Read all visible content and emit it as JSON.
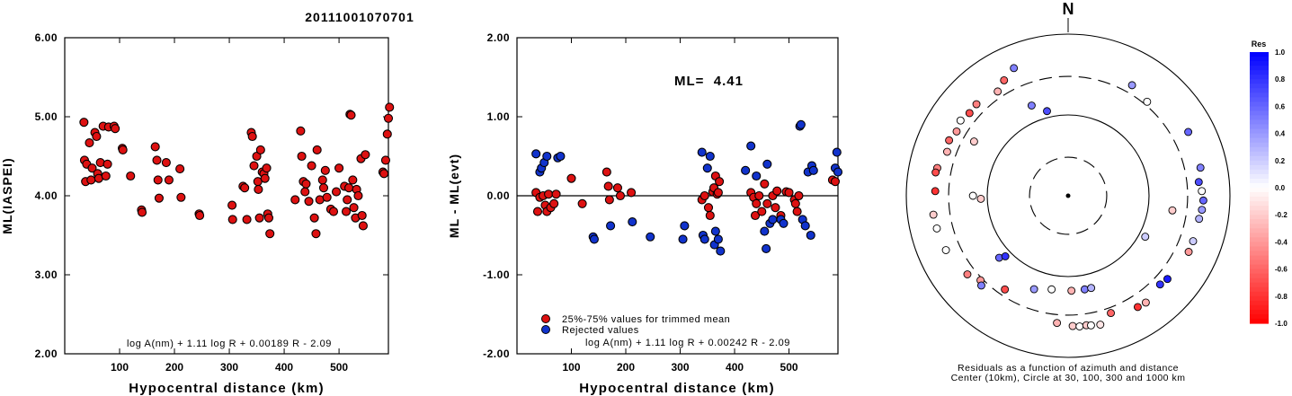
{
  "header": {
    "event_id": "20111001070701"
  },
  "chart_data": [
    {
      "type": "scatter",
      "xlabel": "Hypocentral distance (km)",
      "ylabel": "ML(IASPEI)",
      "xlim": [
        0,
        590
      ],
      "ylim": [
        2.0,
        6.0
      ],
      "x_ticks": [
        {
          "v": 100,
          "label": "100"
        },
        {
          "v": 200,
          "label": "200"
        },
        {
          "v": 300,
          "label": "300"
        },
        {
          "v": 400,
          "label": "400"
        },
        {
          "v": 500,
          "label": "500"
        }
      ],
      "y_ticks": [
        {
          "v": 2.0,
          "label": "2.00"
        },
        {
          "v": 3.0,
          "label": "3.00"
        },
        {
          "v": 4.0,
          "label": "4.00"
        },
        {
          "v": 5.0,
          "label": "5.00"
        },
        {
          "v": 6.0,
          "label": "6.00"
        }
      ],
      "formula": "log A(nm) + 1.11 log R + 0.00189 R - 2.09",
      "marker_color": "#dd1111",
      "points": [
        [
          35,
          4.93
        ],
        [
          36,
          4.45
        ],
        [
          38,
          4.18
        ],
        [
          40,
          4.4
        ],
        [
          45,
          4.67
        ],
        [
          48,
          4.2
        ],
        [
          50,
          4.35
        ],
        [
          55,
          4.8
        ],
        [
          58,
          4.75
        ],
        [
          60,
          4.28
        ],
        [
          62,
          4.22
        ],
        [
          65,
          4.42
        ],
        [
          70,
          4.88
        ],
        [
          75,
          4.25
        ],
        [
          78,
          4.4
        ],
        [
          80,
          4.87
        ],
        [
          90,
          4.88
        ],
        [
          92,
          4.85
        ],
        [
          105,
          4.6
        ],
        [
          106,
          4.58
        ],
        [
          120,
          4.25
        ],
        [
          140,
          3.82
        ],
        [
          141,
          3.79
        ],
        [
          165,
          4.62
        ],
        [
          168,
          4.45
        ],
        [
          170,
          4.2
        ],
        [
          172,
          3.97
        ],
        [
          185,
          4.42
        ],
        [
          190,
          4.2
        ],
        [
          210,
          4.34
        ],
        [
          212,
          3.98
        ],
        [
          245,
          3.77
        ],
        [
          246,
          3.75
        ],
        [
          305,
          3.88
        ],
        [
          306,
          3.7
        ],
        [
          325,
          4.12
        ],
        [
          328,
          4.1
        ],
        [
          332,
          3.7
        ],
        [
          340,
          4.8
        ],
        [
          342,
          4.75
        ],
        [
          345,
          4.38
        ],
        [
          350,
          4.5
        ],
        [
          352,
          4.18
        ],
        [
          353,
          4.08
        ],
        [
          355,
          3.72
        ],
        [
          357,
          4.58
        ],
        [
          360,
          4.3
        ],
        [
          363,
          4.28
        ],
        [
          365,
          4.22
        ],
        [
          368,
          4.35
        ],
        [
          370,
          3.77
        ],
        [
          372,
          3.72
        ],
        [
          374,
          3.52
        ],
        [
          420,
          3.95
        ],
        [
          430,
          4.82
        ],
        [
          432,
          4.5
        ],
        [
          435,
          4.18
        ],
        [
          438,
          4.05
        ],
        [
          440,
          4.15
        ],
        [
          445,
          3.93
        ],
        [
          450,
          4.38
        ],
        [
          455,
          3.72
        ],
        [
          458,
          3.52
        ],
        [
          460,
          4.58
        ],
        [
          465,
          3.95
        ],
        [
          470,
          4.2
        ],
        [
          472,
          4.1
        ],
        [
          475,
          4.32
        ],
        [
          478,
          3.98
        ],
        [
          485,
          3.83
        ],
        [
          490,
          3.8
        ],
        [
          495,
          4.05
        ],
        [
          500,
          4.35
        ],
        [
          510,
          4.12
        ],
        [
          513,
          3.8
        ],
        [
          515,
          3.95
        ],
        [
          518,
          4.1
        ],
        [
          520,
          5.03
        ],
        [
          522,
          5.02
        ],
        [
          525,
          4.2
        ],
        [
          527,
          3.85
        ],
        [
          530,
          3.72
        ],
        [
          532,
          4.08
        ],
        [
          535,
          4.0
        ],
        [
          540,
          4.47
        ],
        [
          542,
          3.75
        ],
        [
          544,
          3.62
        ],
        [
          548,
          4.52
        ],
        [
          580,
          4.3
        ],
        [
          582,
          4.28
        ],
        [
          585,
          4.45
        ],
        [
          588,
          4.78
        ],
        [
          590,
          4.98
        ],
        [
          592,
          5.12
        ]
      ]
    },
    {
      "type": "scatter",
      "xlabel": "Hypocentral distance (km)",
      "ylabel": "ML - ML(evt)",
      "xlim": [
        0,
        590
      ],
      "ylim": [
        -2.0,
        2.0
      ],
      "x_ticks": [
        {
          "v": 100,
          "label": "100"
        },
        {
          "v": 200,
          "label": "200"
        },
        {
          "v": 300,
          "label": "300"
        },
        {
          "v": 400,
          "label": "400"
        },
        {
          "v": 500,
          "label": "500"
        }
      ],
      "y_ticks": [
        {
          "v": -2.0,
          "label": "-2.00"
        },
        {
          "v": -1.0,
          "label": "-1.00"
        },
        {
          "v": 0.0,
          "label": "0.00"
        },
        {
          "v": 1.0,
          "label": "1.00"
        },
        {
          "v": 2.0,
          "label": "2.00"
        }
      ],
      "annotation": "ML=  4.41",
      "formula": "log A(nm) + 1.11 log R + 0.00242 R - 2.09",
      "legend": [
        {
          "label": "25%-75% values for trimmed mean",
          "color": "#dd1111"
        },
        {
          "label": "Rejected values",
          "color": "#1133cc"
        }
      ],
      "series": [
        {
          "name": "25%-75% values for trimmed mean",
          "color": "#dd1111",
          "points": [
            [
              35,
              0.04
            ],
            [
              38,
              -0.2
            ],
            [
              42,
              -0.02
            ],
            [
              48,
              0.0
            ],
            [
              52,
              -0.12
            ],
            [
              55,
              -0.2
            ],
            [
              58,
              0.02
            ],
            [
              62,
              -0.15
            ],
            [
              68,
              -0.1
            ],
            [
              72,
              0.02
            ],
            [
              100,
              0.22
            ],
            [
              120,
              -0.1
            ],
            [
              165,
              0.3
            ],
            [
              168,
              0.12
            ],
            [
              170,
              -0.05
            ],
            [
              185,
              0.1
            ],
            [
              190,
              0.0
            ],
            [
              210,
              0.04
            ],
            [
              340,
              -0.05
            ],
            [
              345,
              0.0
            ],
            [
              352,
              -0.15
            ],
            [
              355,
              -0.25
            ],
            [
              360,
              0.05
            ],
            [
              362,
              0.1
            ],
            [
              365,
              0.25
            ],
            [
              368,
              0.02
            ],
            [
              370,
              0.04
            ],
            [
              372,
              0.18
            ],
            [
              430,
              0.04
            ],
            [
              435,
              -0.02
            ],
            [
              438,
              -0.25
            ],
            [
              440,
              -0.1
            ],
            [
              445,
              0.0
            ],
            [
              450,
              -0.2
            ],
            [
              455,
              0.15
            ],
            [
              460,
              -0.1
            ],
            [
              470,
              0.0
            ],
            [
              475,
              -0.15
            ],
            [
              478,
              0.06
            ],
            [
              485,
              -0.25
            ],
            [
              495,
              0.05
            ],
            [
              500,
              0.04
            ],
            [
              510,
              -0.05
            ],
            [
              512,
              -0.1
            ],
            [
              515,
              -0.2
            ],
            [
              518,
              0.0
            ],
            [
              580,
              0.2
            ],
            [
              585,
              0.18
            ]
          ]
        },
        {
          "name": "Rejected values",
          "color": "#1133cc",
          "points": [
            [
              35,
              0.53
            ],
            [
              42,
              0.3
            ],
            [
              45,
              0.35
            ],
            [
              50,
              0.42
            ],
            [
              55,
              0.5
            ],
            [
              75,
              0.48
            ],
            [
              80,
              0.5
            ],
            [
              140,
              -0.52
            ],
            [
              142,
              -0.55
            ],
            [
              172,
              -0.38
            ],
            [
              212,
              -0.33
            ],
            [
              245,
              -0.52
            ],
            [
              305,
              -0.55
            ],
            [
              308,
              -0.38
            ],
            [
              340,
              0.55
            ],
            [
              342,
              -0.5
            ],
            [
              345,
              -0.55
            ],
            [
              350,
              0.35
            ],
            [
              355,
              0.5
            ],
            [
              363,
              -0.62
            ],
            [
              365,
              -0.45
            ],
            [
              370,
              -0.55
            ],
            [
              374,
              -0.7
            ],
            [
              420,
              0.32
            ],
            [
              430,
              0.63
            ],
            [
              440,
              0.25
            ],
            [
              455,
              -0.45
            ],
            [
              458,
              -0.67
            ],
            [
              460,
              0.4
            ],
            [
              465,
              -0.35
            ],
            [
              470,
              -0.3
            ],
            [
              485,
              -0.3
            ],
            [
              490,
              -0.35
            ],
            [
              520,
              0.88
            ],
            [
              522,
              0.9
            ],
            [
              525,
              -0.3
            ],
            [
              530,
              -0.38
            ],
            [
              535,
              0.3
            ],
            [
              540,
              -0.5
            ],
            [
              542,
              0.38
            ],
            [
              545,
              0.32
            ],
            [
              585,
              0.35
            ],
            [
              588,
              0.55
            ],
            [
              590,
              0.3
            ]
          ]
        }
      ]
    },
    {
      "type": "scatter",
      "subtype": "polar",
      "north_label": "N",
      "caption_lines": [
        "Residuals as a function of azimuth and distance",
        "Center (10km), Circle at 30, 100, 300 and 1000 km"
      ],
      "rings": [
        {
          "km": 30,
          "style": "dashed"
        },
        {
          "km": 100,
          "style": "solid"
        },
        {
          "km": 300,
          "style": "dashed"
        },
        {
          "km": 1000,
          "style": "solid"
        }
      ],
      "colorbar": {
        "title": "Res",
        "ticks": [
          "1.0",
          "0.8",
          "0.6",
          "0.4",
          "0.2",
          "0.0",
          "-0.2",
          "-0.4",
          "-0.6",
          "-0.8",
          "-1.0"
        ],
        "max_color": "#0000ff",
        "zero_color": "#ffffff",
        "min_color": "#ff0000"
      },
      "points": [
        {
          "az": 337,
          "km": 520,
          "res": 0.5
        },
        {
          "az": 331,
          "km": 430,
          "res": -0.6
        },
        {
          "az": 326,
          "km": 360,
          "res": -0.3
        },
        {
          "az": 315,
          "km": 400,
          "res": -0.5
        },
        {
          "az": 310,
          "km": 390,
          "res": -0.7
        },
        {
          "az": 305,
          "km": 420,
          "res": 0.0
        },
        {
          "az": 300,
          "km": 390,
          "res": -0.4
        },
        {
          "az": 295,
          "km": 420,
          "res": -0.6
        },
        {
          "az": 300,
          "km": 220,
          "res": -0.2
        },
        {
          "az": 290,
          "km": 390,
          "res": -0.3
        },
        {
          "az": 282,
          "km": 450,
          "res": -0.5
        },
        {
          "az": 280,
          "km": 460,
          "res": -0.7
        },
        {
          "az": 272,
          "km": 440,
          "res": -0.8
        },
        {
          "az": 270,
          "km": 150,
          "res": 0.0
        },
        {
          "az": 268,
          "km": 120,
          "res": -0.2
        },
        {
          "az": 262,
          "km": 480,
          "res": -0.2
        },
        {
          "az": 256,
          "km": 470,
          "res": 0.0
        },
        {
          "az": 246,
          "km": 450,
          "res": 0.0
        },
        {
          "az": 232,
          "km": 380,
          "res": -0.5
        },
        {
          "az": 226,
          "km": 320,
          "res": -0.4
        },
        {
          "az": 224,
          "km": 350,
          "res": 0.5
        },
        {
          "az": 214,
          "km": 250,
          "res": -0.7
        },
        {
          "az": 200,
          "km": 170,
          "res": 0.4
        },
        {
          "az": 190,
          "km": 150,
          "res": 0.0
        },
        {
          "az": 178,
          "km": 150,
          "res": -0.3
        },
        {
          "az": 170,
          "km": 150,
          "res": 0.5
        },
        {
          "az": 166,
          "km": 150,
          "res": 0.3
        },
        {
          "az": 148,
          "km": 420,
          "res": -0.8
        },
        {
          "az": 144,
          "km": 430,
          "res": -0.3
        },
        {
          "az": 134,
          "km": 380,
          "res": 0.8
        },
        {
          "az": 130,
          "km": 400,
          "res": 0.9
        },
        {
          "az": 100,
          "km": 440,
          "res": 0.3
        },
        {
          "az": 96,
          "km": 460,
          "res": 0.4
        },
        {
          "az": 92,
          "km": 470,
          "res": 0.6
        },
        {
          "az": 88,
          "km": 450,
          "res": 0.0
        },
        {
          "az": 84,
          "km": 420,
          "res": 0.7
        },
        {
          "az": 78,
          "km": 470,
          "res": 0.5
        },
        {
          "az": 115,
          "km": 440,
          "res": -0.4
        },
        {
          "az": 110,
          "km": 440,
          "res": 0.2
        },
        {
          "az": 62,
          "km": 480,
          "res": 0.6
        },
        {
          "az": 98,
          "km": 200,
          "res": -0.2
        },
        {
          "az": 118,
          "km": 120,
          "res": 0.2
        },
        {
          "az": 40,
          "km": 330,
          "res": 0.0
        },
        {
          "az": 30,
          "km": 380,
          "res": 0.4
        },
        {
          "az": 338,
          "km": 160,
          "res": 0.5
        },
        {
          "az": 346,
          "km": 120,
          "res": 0.7
        },
        {
          "az": 228,
          "km": 140,
          "res": 0.6
        },
        {
          "az": 226,
          "km": 120,
          "res": 0.8
        },
        {
          "az": 185,
          "km": 380,
          "res": -0.3
        },
        {
          "az": 178,
          "km": 410,
          "res": -0.2
        },
        {
          "az": 175,
          "km": 420,
          "res": 0.0
        },
        {
          "az": 172,
          "km": 415,
          "res": -0.2
        },
        {
          "az": 170,
          "km": 425,
          "res": 0.0
        },
        {
          "az": 166,
          "km": 440,
          "res": -0.1
        },
        {
          "az": 160,
          "km": 350,
          "res": -0.6
        }
      ]
    }
  ]
}
